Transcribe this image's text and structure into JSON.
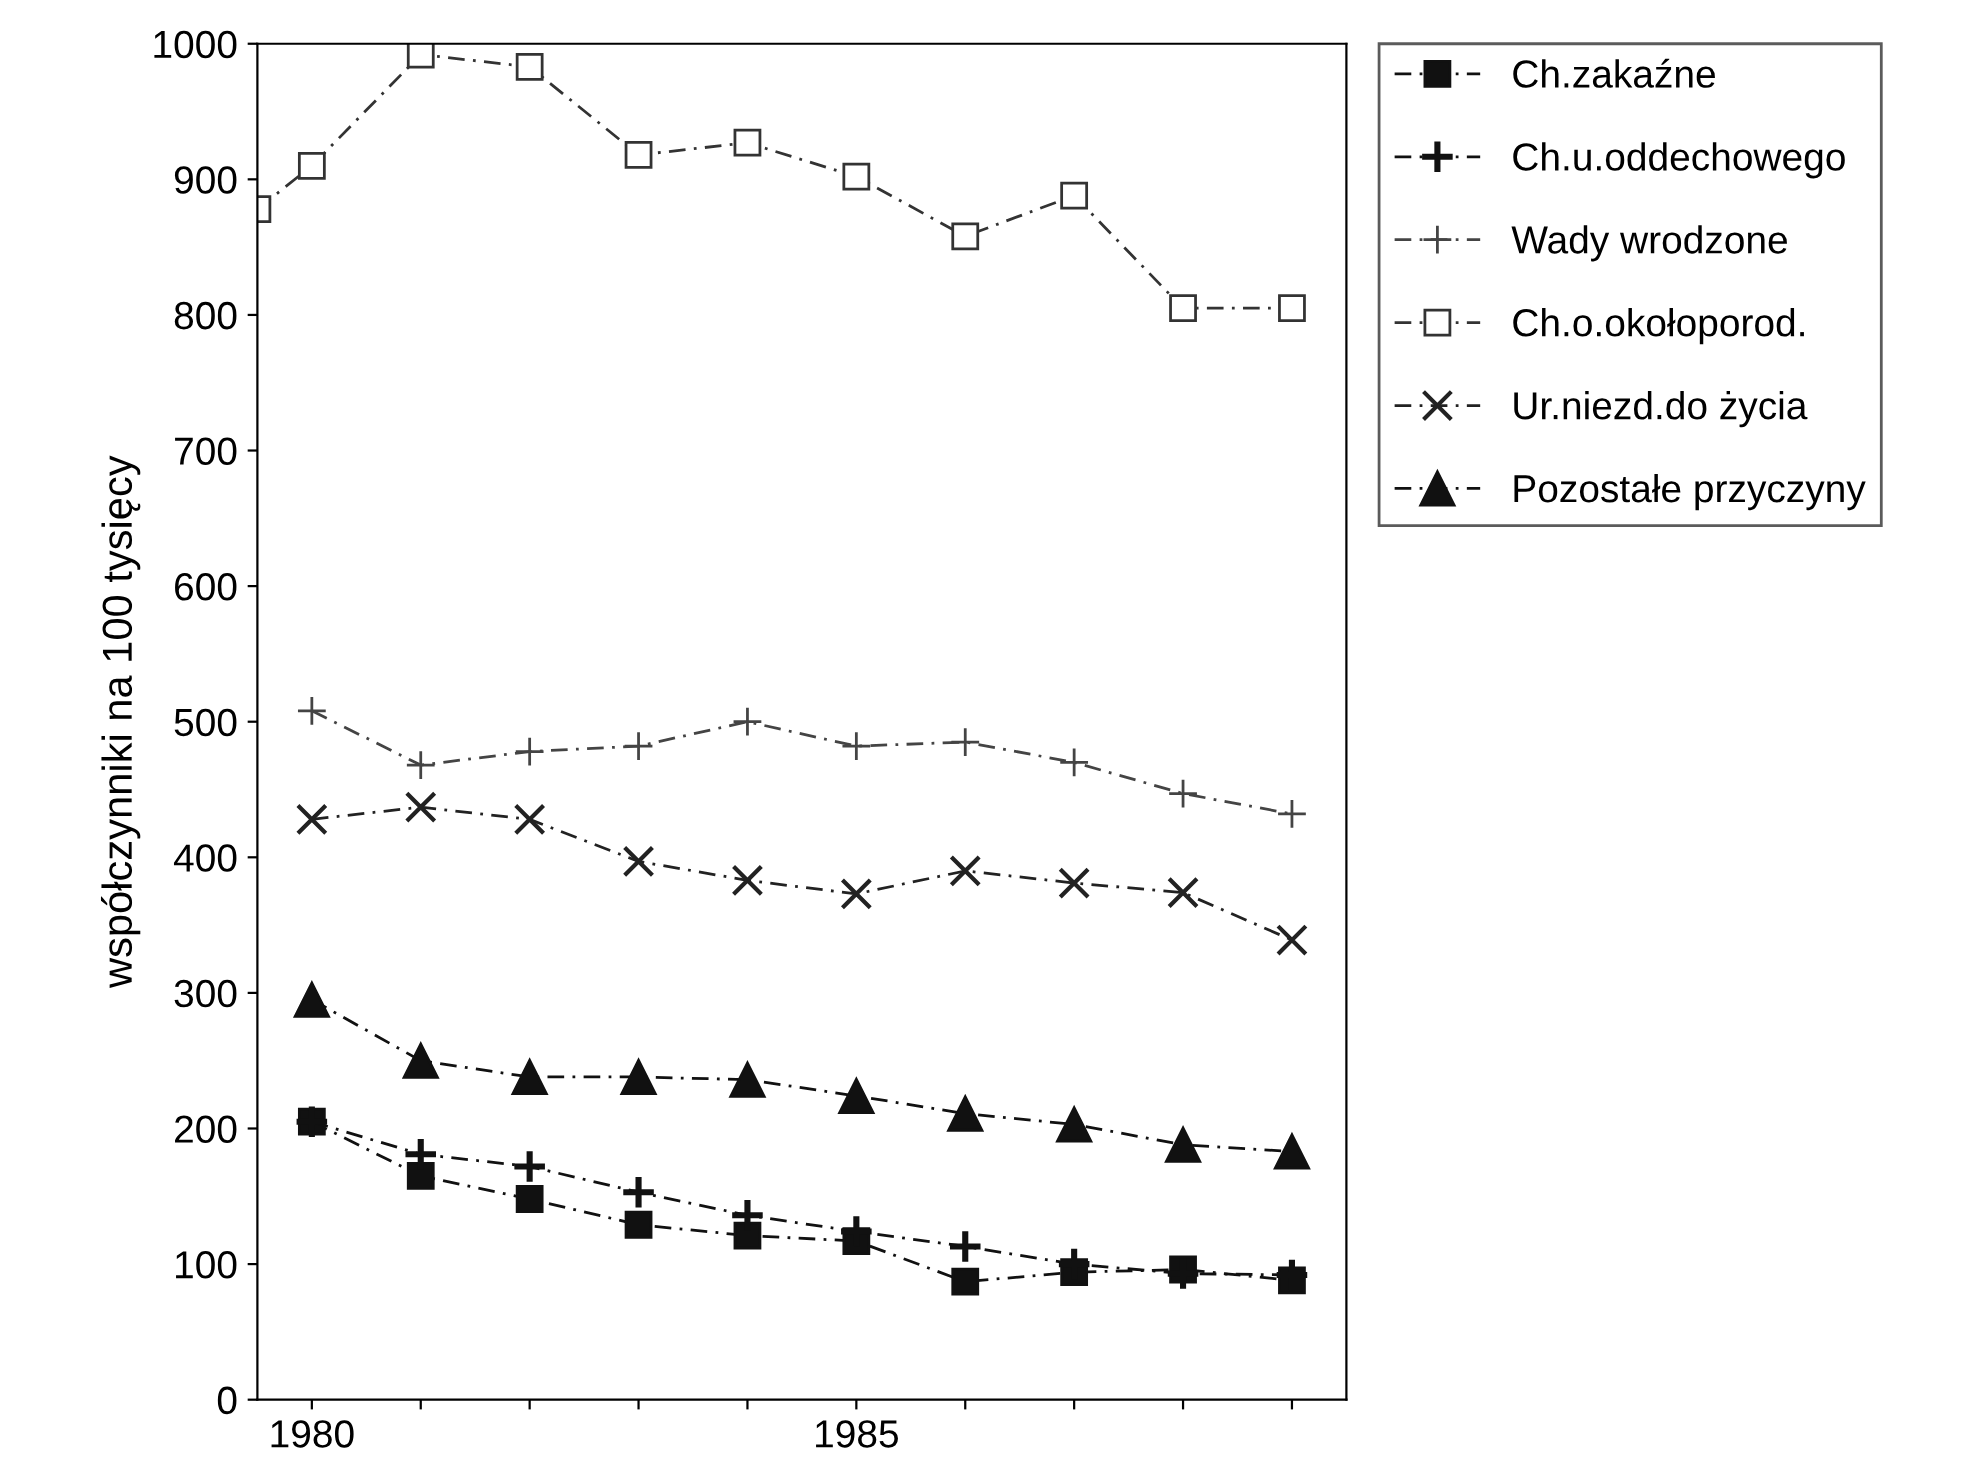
{
  "chart_data": {
    "type": "line",
    "ylabel": "współczynniki na 100 tysięcy",
    "x": [
      1980,
      1981,
      1982,
      1983,
      1984,
      1985,
      1986,
      1987,
      1988,
      1989
    ],
    "xlim": [
      1979.5,
      1989.5
    ],
    "xticks": [
      1980,
      {
        "value": 1981,
        "label": null
      },
      {
        "value": 1982,
        "label": null
      },
      {
        "value": 1983,
        "label": null
      },
      {
        "value": 1984,
        "label": null
      },
      1985,
      {
        "value": 1986,
        "label": null
      },
      {
        "value": 1987,
        "label": null
      },
      {
        "value": 1988,
        "label": null
      },
      {
        "value": 1989,
        "label": null
      }
    ],
    "ylim": [
      0,
      1000
    ],
    "yticks": [
      0,
      100,
      200,
      300,
      400,
      500,
      600,
      700,
      800,
      900,
      1000
    ],
    "grid": false,
    "legend": "right",
    "line_style": "dashed",
    "series": [
      {
        "name": "Ch.zakaźne",
        "color": "#111111",
        "marker": "square",
        "values": [
          205,
          165,
          148,
          129,
          121,
          117,
          87,
          94,
          96,
          88
        ]
      },
      {
        "name": "Ch.u.oddechowego",
        "color": "#111111",
        "marker": "cross",
        "values": [
          205,
          181,
          172,
          153,
          136,
          124,
          113,
          100,
          93,
          92
        ]
      },
      {
        "name": "Wady wrodzone",
        "color": "#444444",
        "marker": "cross",
        "values": [
          508,
          468,
          478,
          482,
          500,
          482,
          485,
          470,
          447,
          432
        ]
      },
      {
        "name": "Ch.o.okołoporod.",
        "color": "#333333",
        "marker": "square",
        "x": [
          1979.5,
          1980,
          1981,
          1982,
          1983,
          1984,
          1985,
          1986,
          1987,
          1988,
          1989
        ],
        "values": [
          878,
          910,
          992,
          983,
          918,
          927,
          902,
          858,
          888,
          805,
          805
        ]
      },
      {
        "name": "Ur.niezd.do życia",
        "color": "#222222",
        "marker": "cross",
        "values": [
          428,
          437,
          428,
          397,
          383,
          373,
          390,
          381,
          374,
          339
        ]
      },
      {
        "name": "Pozostałe przyczyny",
        "color": "#111111",
        "marker": "triangle",
        "values": [
          295,
          250,
          238,
          238,
          236,
          224,
          211,
          203,
          188,
          183
        ]
      }
    ]
  }
}
